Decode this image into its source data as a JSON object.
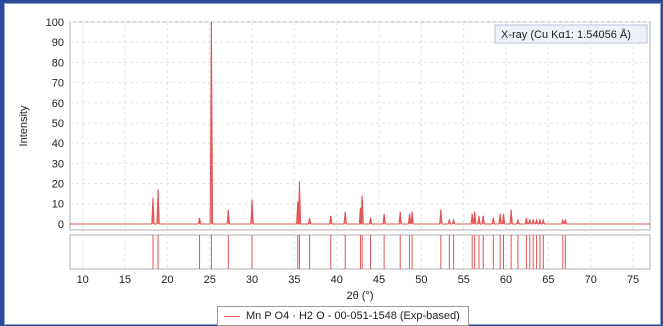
{
  "chart_data": {
    "type": "bar",
    "xlabel": "2θ (°)",
    "ylabel": "Intensity",
    "xlim": [
      8.5,
      77
    ],
    "ylim": [
      -3,
      100
    ],
    "x_ticks": [
      10,
      15,
      20,
      25,
      30,
      35,
      40,
      45,
      50,
      55,
      60,
      65,
      70,
      75
    ],
    "y_ticks": [
      0,
      10,
      20,
      30,
      40,
      50,
      60,
      70,
      80,
      90,
      100
    ],
    "grid": true,
    "annotation": "X-ray (Cu Kα1: 1.54056 Å)",
    "legend_position": "bottom",
    "series": [
      {
        "name": "Mn P O4 · H2 O - 00-051-1548 (Exp-based)",
        "color": "#e05555",
        "peaks": [
          {
            "x": 18.3,
            "y": 13
          },
          {
            "x": 18.9,
            "y": 17
          },
          {
            "x": 23.8,
            "y": 3
          },
          {
            "x": 25.2,
            "y": 100
          },
          {
            "x": 27.2,
            "y": 7
          },
          {
            "x": 30.0,
            "y": 12
          },
          {
            "x": 35.4,
            "y": 11
          },
          {
            "x": 35.6,
            "y": 21
          },
          {
            "x": 36.8,
            "y": 3
          },
          {
            "x": 39.3,
            "y": 4
          },
          {
            "x": 41.0,
            "y": 6
          },
          {
            "x": 42.8,
            "y": 8
          },
          {
            "x": 43.0,
            "y": 14
          },
          {
            "x": 44.0,
            "y": 3
          },
          {
            "x": 45.6,
            "y": 5
          },
          {
            "x": 47.5,
            "y": 6
          },
          {
            "x": 48.6,
            "y": 5
          },
          {
            "x": 48.9,
            "y": 6
          },
          {
            "x": 52.3,
            "y": 7
          },
          {
            "x": 53.3,
            "y": 2
          },
          {
            "x": 53.8,
            "y": 2
          },
          {
            "x": 56.0,
            "y": 5
          },
          {
            "x": 56.3,
            "y": 6
          },
          {
            "x": 56.8,
            "y": 4
          },
          {
            "x": 57.3,
            "y": 4
          },
          {
            "x": 58.5,
            "y": 3
          },
          {
            "x": 59.3,
            "y": 5
          },
          {
            "x": 59.7,
            "y": 5
          },
          {
            "x": 60.6,
            "y": 7
          },
          {
            "x": 61.4,
            "y": 2
          },
          {
            "x": 62.4,
            "y": 3
          },
          {
            "x": 62.8,
            "y": 2
          },
          {
            "x": 63.2,
            "y": 2
          },
          {
            "x": 63.6,
            "y": 2
          },
          {
            "x": 64.0,
            "y": 2
          },
          {
            "x": 64.4,
            "y": 2
          },
          {
            "x": 66.7,
            "y": 2
          },
          {
            "x": 67.0,
            "y": 2
          }
        ]
      }
    ]
  }
}
